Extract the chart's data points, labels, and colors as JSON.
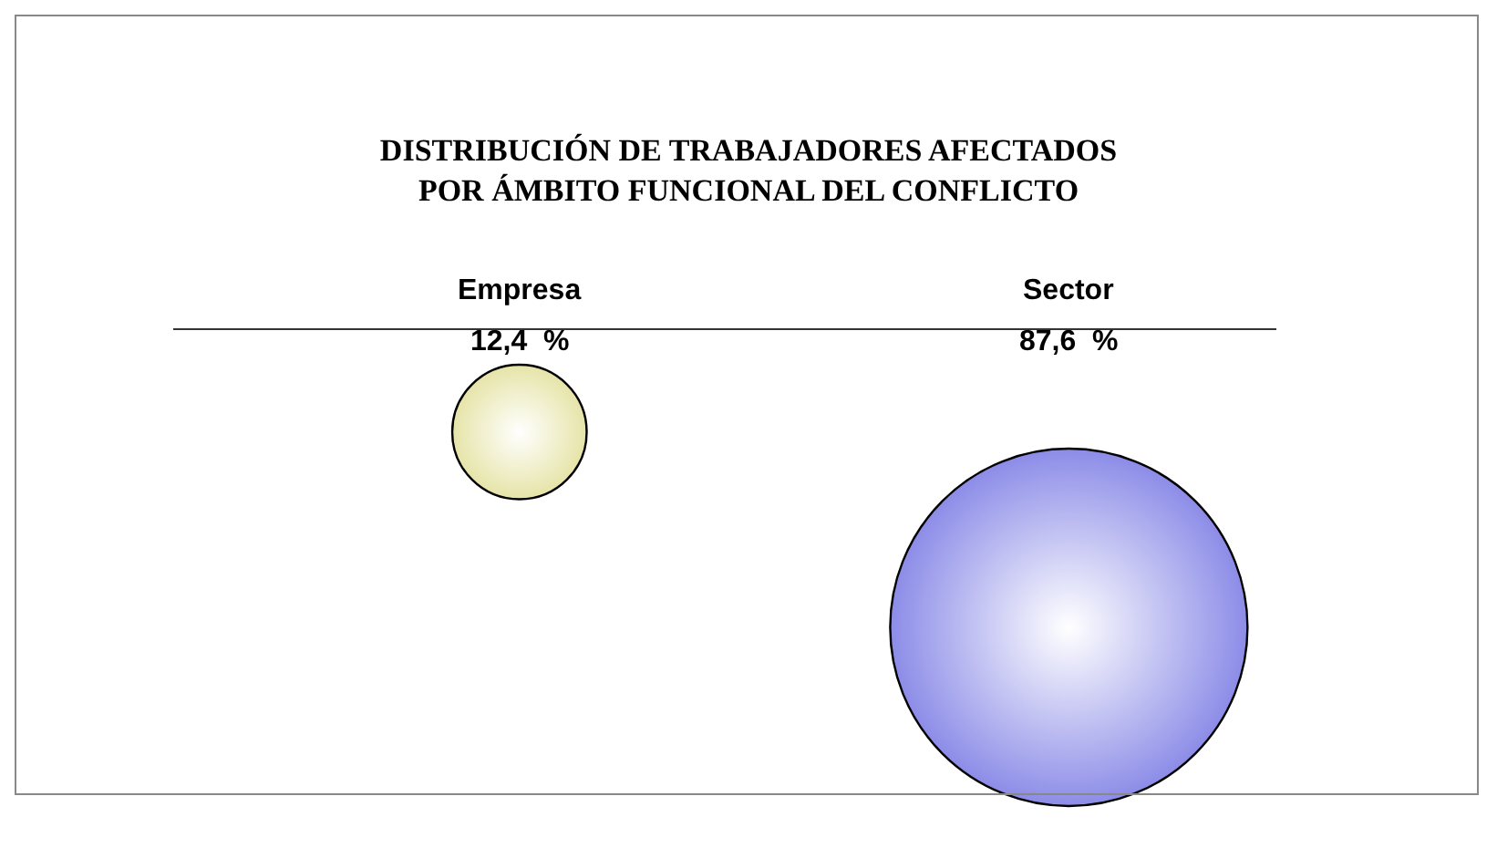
{
  "chart_data": {
    "type": "other",
    "title": "DISTRIBUCIÓN DE TRABAJADORES AFECTADOS\nPOR ÁMBITO FUNCIONAL DEL CONFLICTO",
    "categories": [
      "Empresa",
      "Sector"
    ],
    "values": [
      12.4,
      87.6
    ],
    "value_labels": [
      "12,4  %",
      "87,6  %"
    ],
    "colors": [
      "#e6e4a8",
      "#8c8ce8"
    ]
  }
}
